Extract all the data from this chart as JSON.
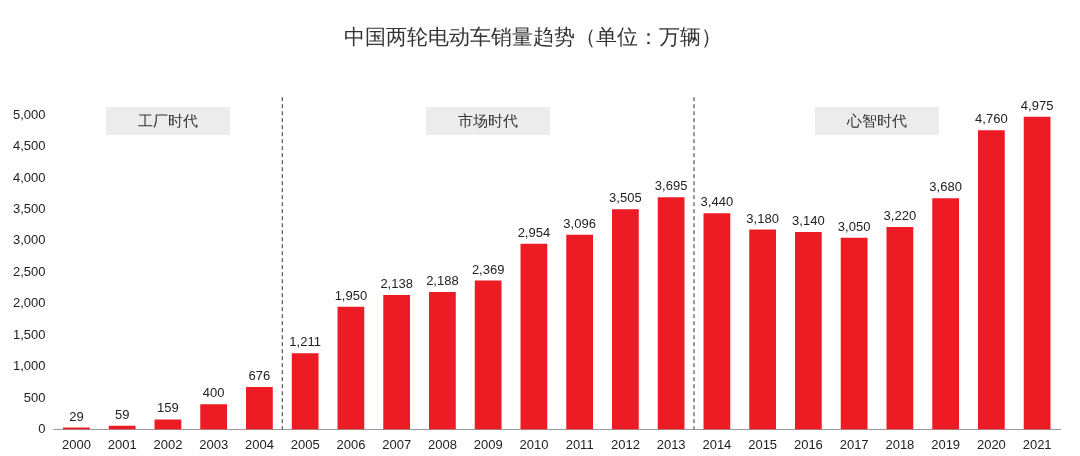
{
  "chart_data": {
    "type": "bar",
    "title": "中国两轮电动车销量趋势（单位：万辆）",
    "categories": [
      "2000",
      "2001",
      "2002",
      "2003",
      "2004",
      "2005",
      "2006",
      "2007",
      "2008",
      "2009",
      "2010",
      "2011",
      "2012",
      "2013",
      "2014",
      "2015",
      "2016",
      "2017",
      "2018",
      "2019",
      "2020",
      "2021"
    ],
    "values": [
      29,
      59,
      159,
      400,
      676,
      1211,
      1950,
      2138,
      2188,
      2369,
      2954,
      3096,
      3505,
      3695,
      3440,
      3180,
      3140,
      3050,
      3220,
      3680,
      4760,
      4975
    ],
    "value_labels": [
      "29",
      "59",
      "159",
      "400",
      "676",
      "1,211",
      "1,950",
      "2,138",
      "2,188",
      "2,369",
      "2,954",
      "3,096",
      "3,505",
      "3,695",
      "3,440",
      "3,180",
      "3,140",
      "3,050",
      "3,220",
      "3,680",
      "4,760",
      "4,975"
    ],
    "color": "#ed1c24",
    "ylim": [
      0,
      5000
    ],
    "yticks": [
      0,
      500,
      {
        "value": 1000,
        "label": "1,000"
      },
      {
        "value": 1500,
        "label": "1,500"
      },
      {
        "value": 2000,
        "label": "2,000"
      },
      {
        "value": 2500,
        "label": "2,500"
      },
      {
        "value": 3000,
        "label": "3,000"
      },
      {
        "value": 3500,
        "label": "3,500"
      },
      {
        "value": 4000,
        "label": "4,000"
      },
      {
        "value": 4500,
        "label": "4,500"
      },
      {
        "value": 5000,
        "label": "5,000"
      }
    ],
    "annotations": [
      "工厂时代",
      "市场时代",
      "心智时代"
    ],
    "grid": false,
    "legend": false
  }
}
